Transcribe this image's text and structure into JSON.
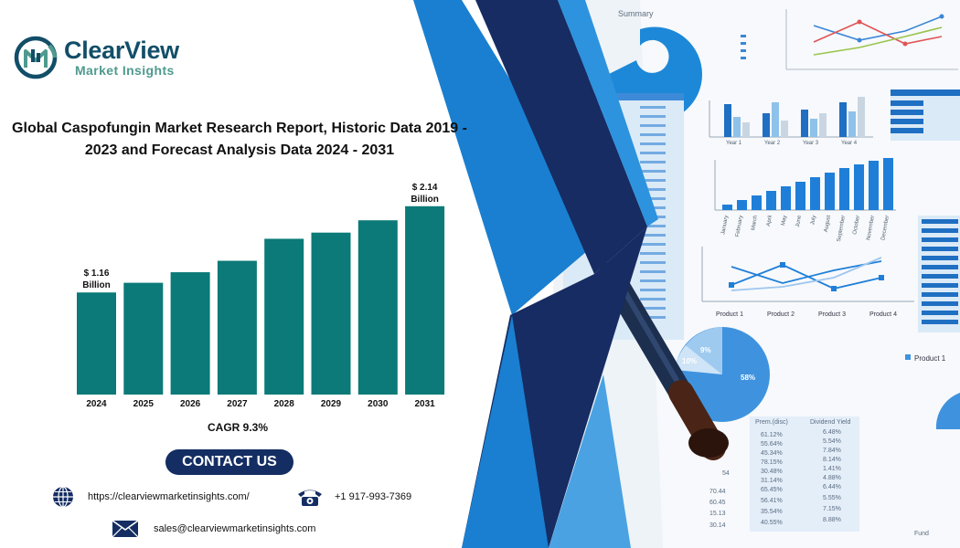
{
  "brand": {
    "name": "ClearView",
    "tagline": "Market Insights",
    "colors": {
      "primary": "#124e68",
      "accent": "#4f9a8f"
    }
  },
  "title_line1": "Global Caspofungin Market Research Report, Historic Data 2019 -",
  "title_line2": "2023 and Forecast Analysis Data 2024 - 2031",
  "chart_data": {
    "type": "bar",
    "categories": [
      "2024",
      "2025",
      "2026",
      "2027",
      "2028",
      "2029",
      "2030",
      "2031"
    ],
    "values": [
      1.16,
      1.27,
      1.39,
      1.52,
      1.77,
      1.84,
      1.98,
      2.14
    ],
    "ylim": [
      0,
      2.2
    ],
    "annotations": [
      {
        "category": "2024",
        "line1": "$ 1.16",
        "line2": "Billion"
      },
      {
        "category": "2031",
        "line1": "$ 2.14",
        "line2": "Billion"
      }
    ],
    "bar_color": "#0b7a78",
    "grid": false,
    "legend": "none"
  },
  "cagr": "CAGR 9.3%",
  "contact": {
    "button_label": "CONTACT US",
    "website": "https://clearviewmarketinsights.com/",
    "phone": "+1 917-993-7369",
    "email": "sales@clearviewmarketinsights.com",
    "icons": [
      "globe-icon",
      "phone-icon",
      "mail-icon"
    ]
  },
  "background": {
    "summary_label": "Summary",
    "months": [
      "January",
      "February",
      "March",
      "April",
      "May",
      "June",
      "July",
      "August",
      "September",
      "October",
      "November",
      "December"
    ],
    "quarters": [
      "Year 1",
      "Year 2",
      "Year 3",
      "Year 4"
    ],
    "products": [
      "Product 1",
      "Product 2",
      "Product 3",
      "Product 4"
    ],
    "table_headers": [
      "Prem.(disc)",
      "Dividend Yield"
    ],
    "table_rows": [
      [
        "61.12%",
        "6.48%"
      ],
      [
        "55.64%",
        "5.54%"
      ],
      [
        "45.34%",
        "7.84%"
      ],
      [
        "78.15%",
        "8.14%"
      ],
      [
        "30.48%",
        "1.41%"
      ],
      [
        "31.14%",
        "4.88%"
      ],
      [
        "65.45%",
        "6.44%"
      ],
      [
        "56.41%",
        "5.55%"
      ],
      [
        "35.54%",
        "7.15%"
      ],
      [
        "40.55%",
        "8.88%"
      ]
    ],
    "row_numbers": [
      "54",
      "70.44",
      "60.45",
      "15.13",
      "30.14"
    ],
    "legend_label": "Product 1",
    "pie_labels": [
      "9%",
      "10%",
      "58%"
    ],
    "fund_label": "Fund",
    "fund_codes": [
      "BKICP",
      "SKKLD",
      "DKLKS",
      "MSKOS",
      "DSKLS",
      "AKSDK",
      "PKSKI",
      "KSPKW",
      "DSKLS",
      "AKSDK",
      "PKSKI",
      "KSPKI",
      "KSKI"
    ]
  }
}
